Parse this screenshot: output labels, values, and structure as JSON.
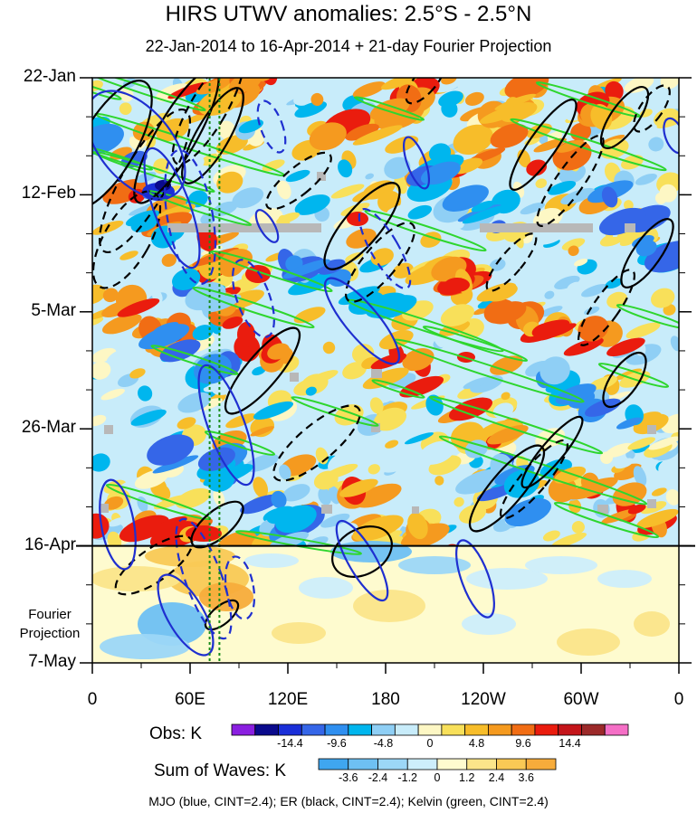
{
  "chart_data": {
    "type": "heatmap",
    "title": "HIRS UTWV anomalies: 2.5°S - 2.5°N",
    "subtitle": "22-Jan-2014 to 16-Apr-2014 + 21-day Fourier Projection",
    "x_axis": {
      "ticks": [
        "0",
        "60E",
        "120E",
        "180",
        "120W",
        "60W",
        "0"
      ],
      "tick_lons": [
        0,
        60,
        120,
        180,
        240,
        300,
        360
      ],
      "range": [
        0,
        360
      ]
    },
    "y_axis": {
      "ticks": [
        "22-Jan",
        "12-Feb",
        "5-Mar",
        "26-Mar",
        "16-Apr",
        "7-May"
      ],
      "tick_days": [
        0,
        21,
        42,
        63,
        84,
        105
      ],
      "range_days": [
        0,
        105
      ],
      "reversed": true
    },
    "projection_label": [
      "Fourier",
      "Projection"
    ],
    "projection_start_day": 84,
    "reference_lines_lon": [
      72,
      78
    ],
    "obs_colorbar": {
      "title": "Obs: K",
      "labels": [
        "-14.4",
        "-9.6",
        "-4.8",
        "0",
        "4.8",
        "9.6",
        "14.4"
      ],
      "colors": [
        "#8a1fe0",
        "#0a0a8c",
        "#1a2fd8",
        "#3566e8",
        "#2f8ff0",
        "#00b6ee",
        "#8fcff5",
        "#c8ecfa",
        "#fdf7c4",
        "#f8e05a",
        "#f7bd2a",
        "#f59a1f",
        "#f16d14",
        "#ea1c0e",
        "#c4151a",
        "#9c2a2a",
        "#f56fc6"
      ]
    },
    "wave_colorbar": {
      "title": "Sum of Waves: K",
      "labels": [
        "-3.6",
        "-2.4",
        "-1.2",
        "0",
        "1.2",
        "2.4",
        "3.6"
      ],
      "colors": [
        "#3fa6f0",
        "#6ec0f3",
        "#9cd7f7",
        "#cdeefb",
        "#fefbcf",
        "#fbe58a",
        "#f9c955",
        "#f7ac3b"
      ]
    },
    "wave_contours": [
      {
        "name": "MJO",
        "color": "blue",
        "cint": 2.4
      },
      {
        "name": "ER",
        "color": "black",
        "cint": 2.4
      },
      {
        "name": "Kelvin",
        "color": "green",
        "cint": 2.4
      }
    ]
  },
  "footer": "MJO (blue, CINT=2.4); ER (black, CINT=2.4); Kelvin (green, CINT=2.4)",
  "colors": {
    "mjo": "#1f2fd0",
    "er": "#000000",
    "kelvin": "#2ed62e",
    "missing": "#b8b8b8",
    "refline": "#1a8c1a"
  }
}
